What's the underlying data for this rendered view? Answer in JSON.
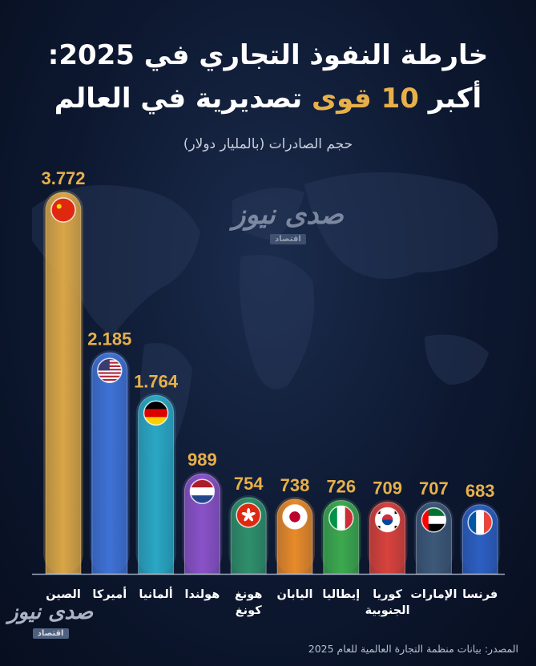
{
  "title_line1": "خارطة النفوذ التجاري في 2025:",
  "title_line2_white": "أكبر",
  "title_line2_gold": "10 قوى",
  "title_line2_white_end": "تصديرية في العالم",
  "subtitle": "حجم الصادرات (بالمليار دولار)",
  "watermark": {
    "main": "صدى نيوز",
    "sub": "اقتصاد"
  },
  "source": "المصدر: بيانات منظمة التجارة العالمية للعام 2025",
  "colors": {
    "gold": "#e7b04a",
    "background": "#0d1830"
  },
  "chart_data": {
    "type": "bar",
    "categories": [
      "الصين",
      "أميركا",
      "ألمانيا",
      "هولندا",
      "هونغ كونغ",
      "اليابان",
      "إيطاليا",
      "كوريا الجنوبية",
      "الإمارات",
      "فرنسا"
    ],
    "category_lines": [
      [
        "الصين"
      ],
      [
        "أميركا"
      ],
      [
        "ألمانيا"
      ],
      [
        "هولندا"
      ],
      [
        "هونغ",
        "كونغ"
      ],
      [
        "اليابان"
      ],
      [
        "إيطاليا"
      ],
      [
        "كوريا",
        "الجنوبية"
      ],
      [
        "الإمارات"
      ],
      [
        "فرنسا"
      ]
    ],
    "values": [
      3772,
      2185,
      1764,
      989,
      754,
      738,
      726,
      709,
      707,
      683
    ],
    "value_labels": [
      "3.772",
      "2.185",
      "1.764",
      "989",
      "754",
      "738",
      "726",
      "709",
      "707",
      "683"
    ],
    "flags": [
      "china-flag-icon",
      "usa-flag-icon",
      "germany-flag-icon",
      "netherlands-flag-icon",
      "hong-kong-flag-icon",
      "japan-flag-icon",
      "italy-flag-icon",
      "south-korea-flag-icon",
      "uae-flag-icon",
      "france-flag-icon"
    ],
    "bar_colors": [
      "#d9a646",
      "#3f72d6",
      "#2aa7c4",
      "#8a52c8",
      "#2f8f6a",
      "#e88a2a",
      "#3ca94e",
      "#d8423c",
      "#3d5878",
      "#2d5fc2"
    ],
    "ylim": [
      0,
      3772
    ]
  }
}
